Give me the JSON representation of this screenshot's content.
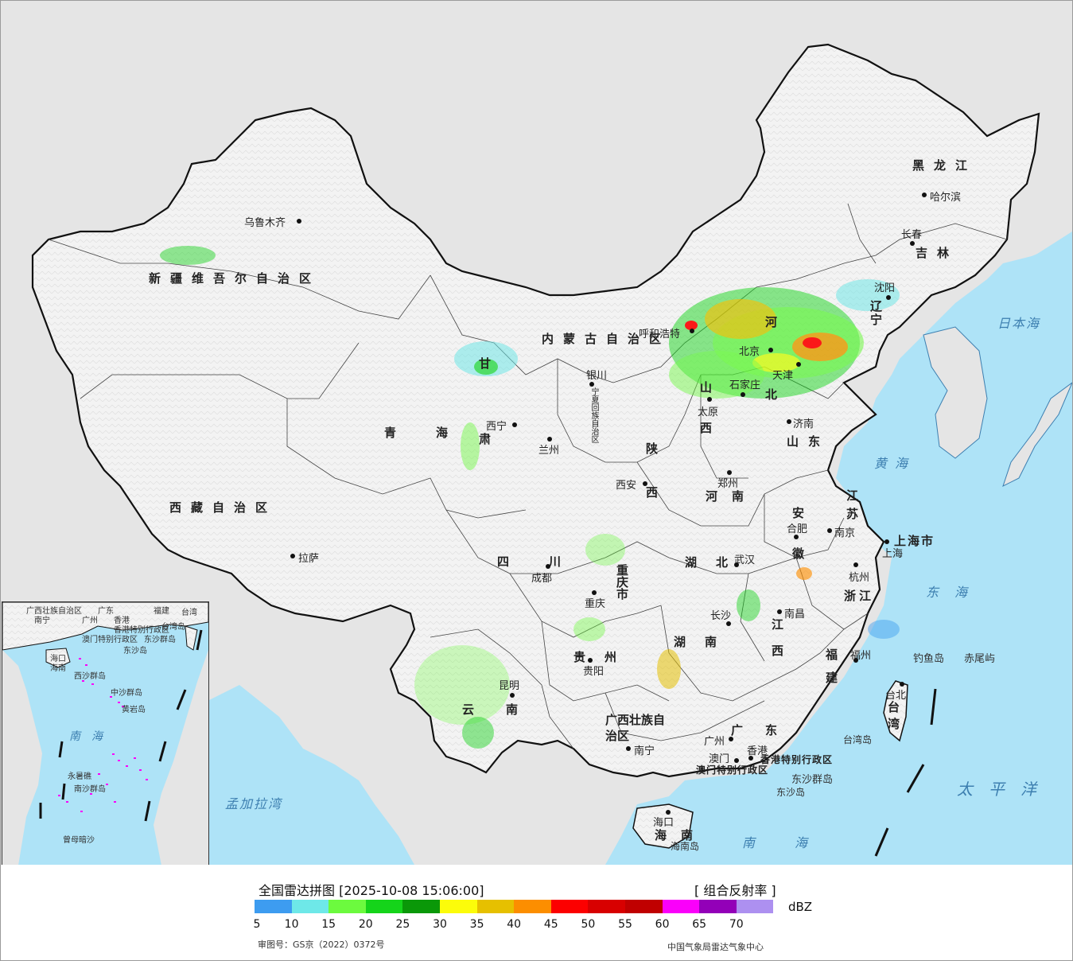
{
  "map": {
    "title": "全国雷达拼图 [2025-10-08 15:06:00]",
    "product": "[ 组合反射率 ]",
    "unit": "dBZ",
    "approval_number": "审图号：GS京（2022）0372号",
    "agency": "中国气象局雷达气象中心",
    "colors": {
      "ocean": "#aee3f7",
      "land": "#f4f4f4",
      "outside_land": "#e5e5e5",
      "border": "#111111"
    }
  },
  "legend": {
    "scale": [
      {
        "value": "5",
        "color": "#3d9cf0"
      },
      {
        "value": "10",
        "color": "#6ee8e8"
      },
      {
        "value": "15",
        "color": "#6cfa3e"
      },
      {
        "value": "20",
        "color": "#15d41a"
      },
      {
        "value": "25",
        "color": "#0a9808"
      },
      {
        "value": "30",
        "color": "#fcfc0a"
      },
      {
        "value": "35",
        "color": "#e6c000"
      },
      {
        "value": "40",
        "color": "#fc8e00"
      },
      {
        "value": "45",
        "color": "#fc0000"
      },
      {
        "value": "50",
        "color": "#d80000"
      },
      {
        "value": "55",
        "color": "#c00000"
      },
      {
        "value": "60",
        "color": "#fa00fa"
      },
      {
        "value": "65",
        "color": "#9300b8"
      },
      {
        "value": "70",
        "color": "#ad90f0"
      }
    ]
  },
  "cities": [
    {
      "name": "乌鲁木齐"
    },
    {
      "name": "哈尔滨"
    },
    {
      "name": "长春"
    },
    {
      "name": "沈阳"
    },
    {
      "name": "呼和浩特"
    },
    {
      "name": "北京"
    },
    {
      "name": "天津"
    },
    {
      "name": "石家庄"
    },
    {
      "name": "太原"
    },
    {
      "name": "济南"
    },
    {
      "name": "银川"
    },
    {
      "name": "西宁"
    },
    {
      "name": "兰州"
    },
    {
      "name": "西安"
    },
    {
      "name": "郑州"
    },
    {
      "name": "合肥"
    },
    {
      "name": "南京"
    },
    {
      "name": "上海"
    },
    {
      "name": "杭州"
    },
    {
      "name": "武汉"
    },
    {
      "name": "成都"
    },
    {
      "name": "重庆"
    },
    {
      "name": "长沙"
    },
    {
      "name": "南昌"
    },
    {
      "name": "福州"
    },
    {
      "name": "贵阳"
    },
    {
      "name": "昆明"
    },
    {
      "name": "南宁"
    },
    {
      "name": "广州"
    },
    {
      "name": "澳门"
    },
    {
      "name": "香港"
    },
    {
      "name": "海口"
    },
    {
      "name": "拉萨"
    },
    {
      "name": "台北"
    }
  ],
  "provinces": [
    {
      "name": "黑龙江"
    },
    {
      "name": "吉林"
    },
    {
      "name": "辽宁"
    },
    {
      "name": "内蒙古自治区"
    },
    {
      "name": "新疆维吾尔自治区"
    },
    {
      "name": "西藏自治区"
    },
    {
      "name": "青海"
    },
    {
      "name": "甘肃"
    },
    {
      "name": "宁夏回族自治区"
    },
    {
      "name": "陕西"
    },
    {
      "name": "山西"
    },
    {
      "name": "河北"
    },
    {
      "name": "山东"
    },
    {
      "name": "河南"
    },
    {
      "name": "江苏"
    },
    {
      "name": "安徽"
    },
    {
      "name": "浙江"
    },
    {
      "name": "上海市"
    },
    {
      "name": "湖北"
    },
    {
      "name": "湖南"
    },
    {
      "name": "江西"
    },
    {
      "name": "福建"
    },
    {
      "name": "四川"
    },
    {
      "name": "重庆市"
    },
    {
      "name": "贵州"
    },
    {
      "name": "云南"
    },
    {
      "name": "广西壮族自治区"
    },
    {
      "name": "广东"
    },
    {
      "name": "海南"
    },
    {
      "name": "台湾"
    },
    {
      "name": "香港特别行政区"
    },
    {
      "name": "澳门特别行政区"
    }
  ],
  "seas": [
    {
      "name": "日本海"
    },
    {
      "name": "黄海"
    },
    {
      "name": "东海"
    },
    {
      "name": "太平洋"
    },
    {
      "name": "南海"
    },
    {
      "name": "孟加拉湾"
    }
  ],
  "islands": [
    {
      "name": "钓鱼岛"
    },
    {
      "name": "赤尾屿"
    },
    {
      "name": "台湾岛"
    },
    {
      "name": "东沙群岛"
    },
    {
      "name": "东沙岛"
    },
    {
      "name": "海南岛"
    }
  ],
  "inset": {
    "labels": [
      {
        "name": "广西壮族自治区"
      },
      {
        "name": "广东"
      },
      {
        "name": "福建"
      },
      {
        "name": "台湾"
      },
      {
        "name": "南宁"
      },
      {
        "name": "广州"
      },
      {
        "name": "香港"
      },
      {
        "name": "台湾岛"
      },
      {
        "name": "澳门特别行政区"
      },
      {
        "name": "香港特别行政区"
      },
      {
        "name": "东沙群岛"
      },
      {
        "name": "东沙岛"
      },
      {
        "name": "海口"
      },
      {
        "name": "海南"
      },
      {
        "name": "西沙群岛"
      },
      {
        "name": "中沙群岛"
      },
      {
        "name": "黄岩岛"
      },
      {
        "name": "永暑礁"
      },
      {
        "name": "南沙群岛"
      },
      {
        "name": "曾母暗沙"
      },
      {
        "name": "南海"
      }
    ]
  }
}
